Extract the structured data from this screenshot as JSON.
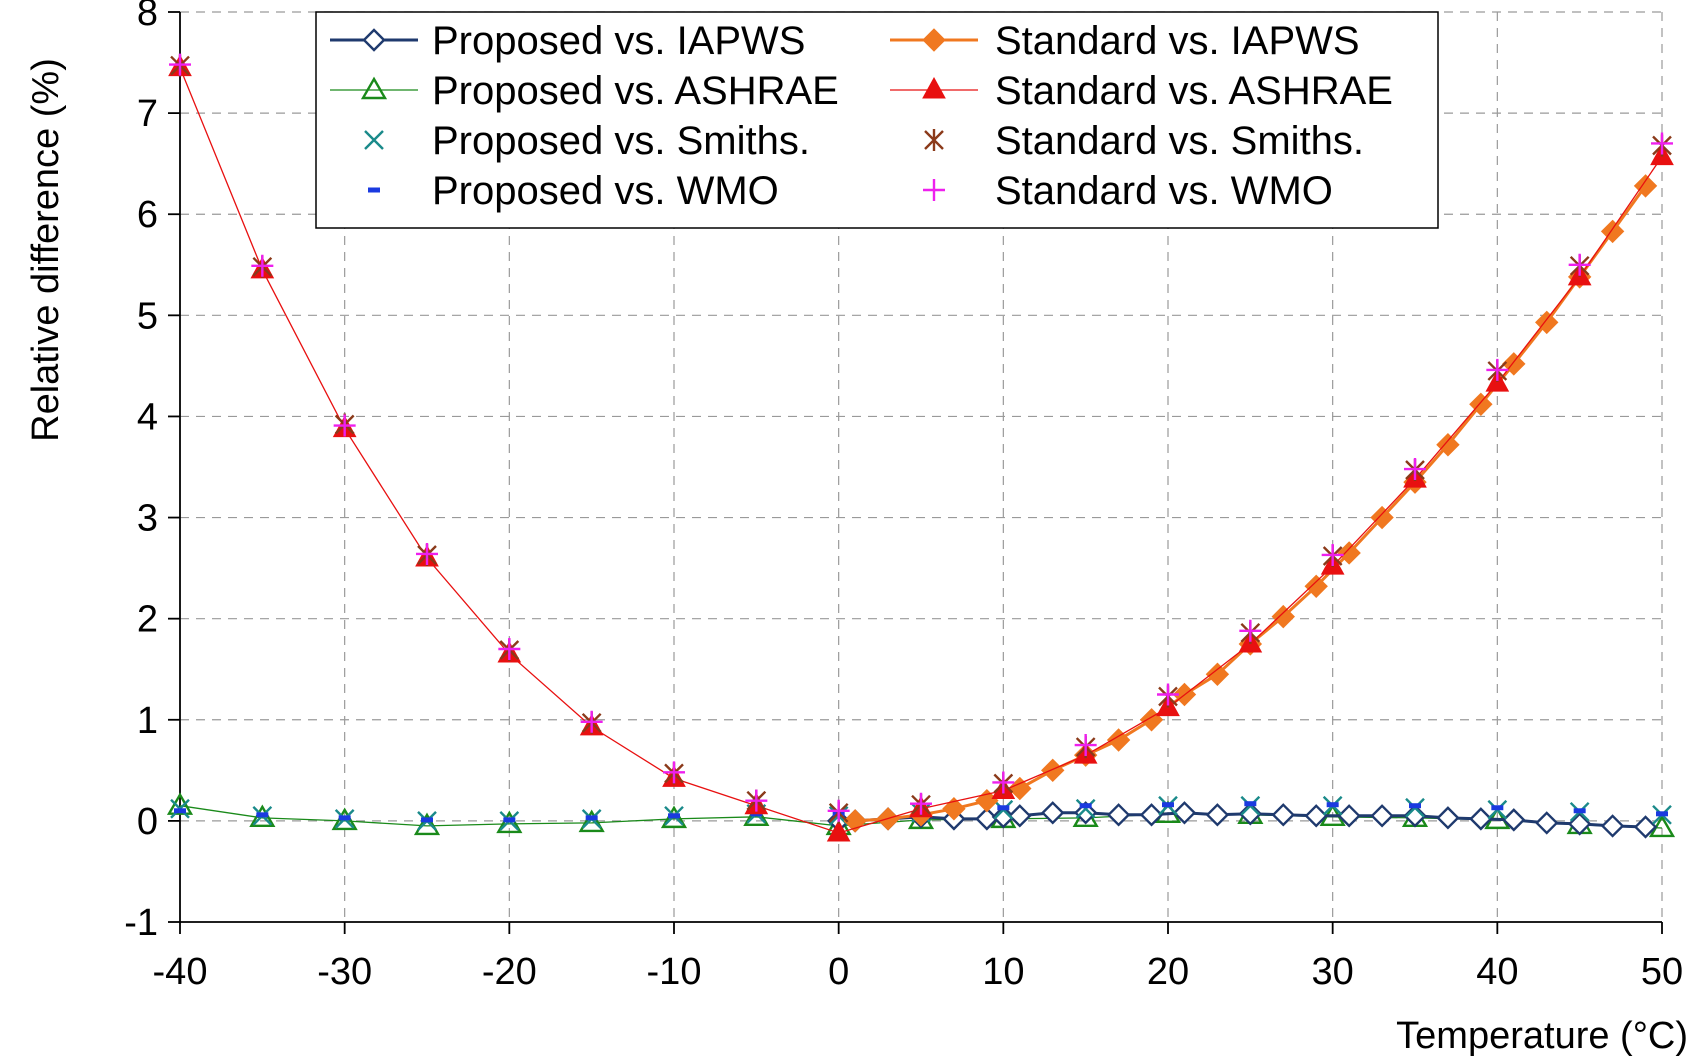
{
  "chart_data": {
    "type": "line",
    "title": "",
    "xlabel": "Temperature (°C)",
    "ylabel": "Relative difference (%)",
    "xlim": [
      -40,
      50
    ],
    "ylim": [
      -1,
      8
    ],
    "xticks": [
      -40,
      -30,
      -20,
      -10,
      0,
      10,
      20,
      30,
      40,
      50
    ],
    "yticks": [
      -1,
      0,
      1,
      2,
      3,
      4,
      5,
      6,
      7,
      8
    ],
    "grid": true,
    "legend_position": "top",
    "series": [
      {
        "name": "Proposed vs. IAPWS",
        "color": "#1f3a6e",
        "marker": "diamond-open",
        "line": "thick",
        "x": [
          0,
          1,
          3,
          5,
          7,
          9,
          10,
          11,
          13,
          15,
          17,
          19,
          21,
          23,
          25,
          27,
          29,
          31,
          33,
          35,
          37,
          39,
          41,
          43,
          45,
          47,
          49
        ],
        "y": [
          0.0,
          0.0,
          0.02,
          0.04,
          0.02,
          0.02,
          0.04,
          0.05,
          0.08,
          0.08,
          0.06,
          0.06,
          0.08,
          0.06,
          0.07,
          0.06,
          0.05,
          0.05,
          0.05,
          0.05,
          0.03,
          0.02,
          0.01,
          -0.02,
          -0.03,
          -0.05,
          -0.06
        ]
      },
      {
        "name": "Proposed vs. ASHRAE",
        "color": "#1a8a1a",
        "marker": "triangle-open",
        "line": "thin",
        "x": [
          -40,
          -35,
          -30,
          -25,
          -20,
          -15,
          -10,
          -5,
          0,
          5,
          10,
          15,
          20,
          25,
          30,
          35,
          40,
          45,
          50
        ],
        "y": [
          0.15,
          0.03,
          0.0,
          -0.05,
          -0.03,
          -0.02,
          0.02,
          0.04,
          -0.05,
          0.01,
          0.02,
          0.03,
          0.07,
          0.06,
          0.04,
          0.03,
          0.01,
          -0.04,
          -0.07
        ]
      },
      {
        "name": "Proposed vs. Smiths.",
        "color": "#1a8a8a",
        "marker": "x",
        "line": "none",
        "x": [
          -40,
          -35,
          -30,
          -25,
          -20,
          -15,
          -10,
          -5,
          0,
          5,
          10,
          15,
          20,
          25,
          30,
          35,
          40,
          45,
          50
        ],
        "y": [
          0.12,
          0.05,
          0.02,
          0.0,
          0.0,
          0.02,
          0.05,
          0.07,
          0.05,
          0.08,
          0.11,
          0.12,
          0.15,
          0.15,
          0.15,
          0.13,
          0.11,
          0.09,
          0.06
        ]
      },
      {
        "name": "Proposed vs. WMO",
        "color": "#1a3ae0",
        "marker": "dash",
        "line": "none",
        "x": [
          -40,
          -35,
          -30,
          -25,
          -20,
          -15,
          -10,
          -5,
          0,
          5,
          10,
          15,
          20,
          25,
          30,
          35,
          40,
          45,
          50
        ],
        "y": [
          0.1,
          0.06,
          0.03,
          0.01,
          0.01,
          0.03,
          0.05,
          0.07,
          0.07,
          0.1,
          0.13,
          0.15,
          0.16,
          0.17,
          0.16,
          0.15,
          0.13,
          0.1,
          0.07
        ]
      },
      {
        "name": "Standard vs. IAPWS",
        "color": "#f07820",
        "marker": "diamond-filled",
        "line": "thick",
        "x": [
          1,
          3,
          5,
          7,
          9,
          11,
          13,
          15,
          17,
          19,
          21,
          23,
          25,
          27,
          29,
          31,
          33,
          35,
          37,
          39,
          41,
          43,
          45,
          47,
          49
        ],
        "y": [
          0.0,
          0.02,
          0.06,
          0.12,
          0.2,
          0.32,
          0.5,
          0.65,
          0.8,
          1.0,
          1.25,
          1.45,
          1.75,
          2.02,
          2.32,
          2.65,
          3.0,
          3.35,
          3.72,
          4.12,
          4.52,
          4.93,
          5.38,
          5.83,
          6.28
        ]
      },
      {
        "name": "Standard vs. ASHRAE",
        "color": "#e81010",
        "marker": "triangle-filled",
        "line": "thin",
        "x": [
          -40,
          -35,
          -30,
          -25,
          -20,
          -15,
          -10,
          -5,
          0,
          5,
          10,
          15,
          20,
          25,
          30,
          35,
          40,
          45,
          50
        ],
        "y": [
          7.45,
          5.45,
          3.88,
          2.6,
          1.65,
          0.93,
          0.42,
          0.15,
          -0.12,
          0.12,
          0.3,
          0.65,
          1.12,
          1.75,
          2.52,
          3.38,
          4.33,
          5.38,
          6.57
        ]
      },
      {
        "name": "Standard vs. Smiths.",
        "color": "#8b3a1a",
        "marker": "asterisk",
        "line": "none",
        "x": [
          -40,
          -35,
          -30,
          -25,
          -20,
          -15,
          -10,
          -5,
          0,
          5,
          10,
          15,
          20,
          25,
          30,
          35,
          40,
          45,
          50
        ],
        "y": [
          7.47,
          5.48,
          3.92,
          2.63,
          1.69,
          0.97,
          0.47,
          0.2,
          0.08,
          0.16,
          0.37,
          0.73,
          1.23,
          1.86,
          2.62,
          3.47,
          4.45,
          5.49,
          6.68
        ]
      },
      {
        "name": "Standard vs. WMO",
        "color": "#ee20ee",
        "marker": "plus",
        "line": "none",
        "x": [
          -40,
          -35,
          -30,
          -25,
          -20,
          -15,
          -10,
          -5,
          0,
          5,
          10,
          15,
          20,
          25,
          30,
          35,
          40,
          45,
          50
        ],
        "y": [
          7.48,
          5.49,
          3.91,
          2.64,
          1.7,
          0.98,
          0.48,
          0.2,
          0.1,
          0.17,
          0.38,
          0.75,
          1.25,
          1.88,
          2.63,
          3.48,
          4.46,
          5.5,
          6.7
        ]
      }
    ]
  }
}
